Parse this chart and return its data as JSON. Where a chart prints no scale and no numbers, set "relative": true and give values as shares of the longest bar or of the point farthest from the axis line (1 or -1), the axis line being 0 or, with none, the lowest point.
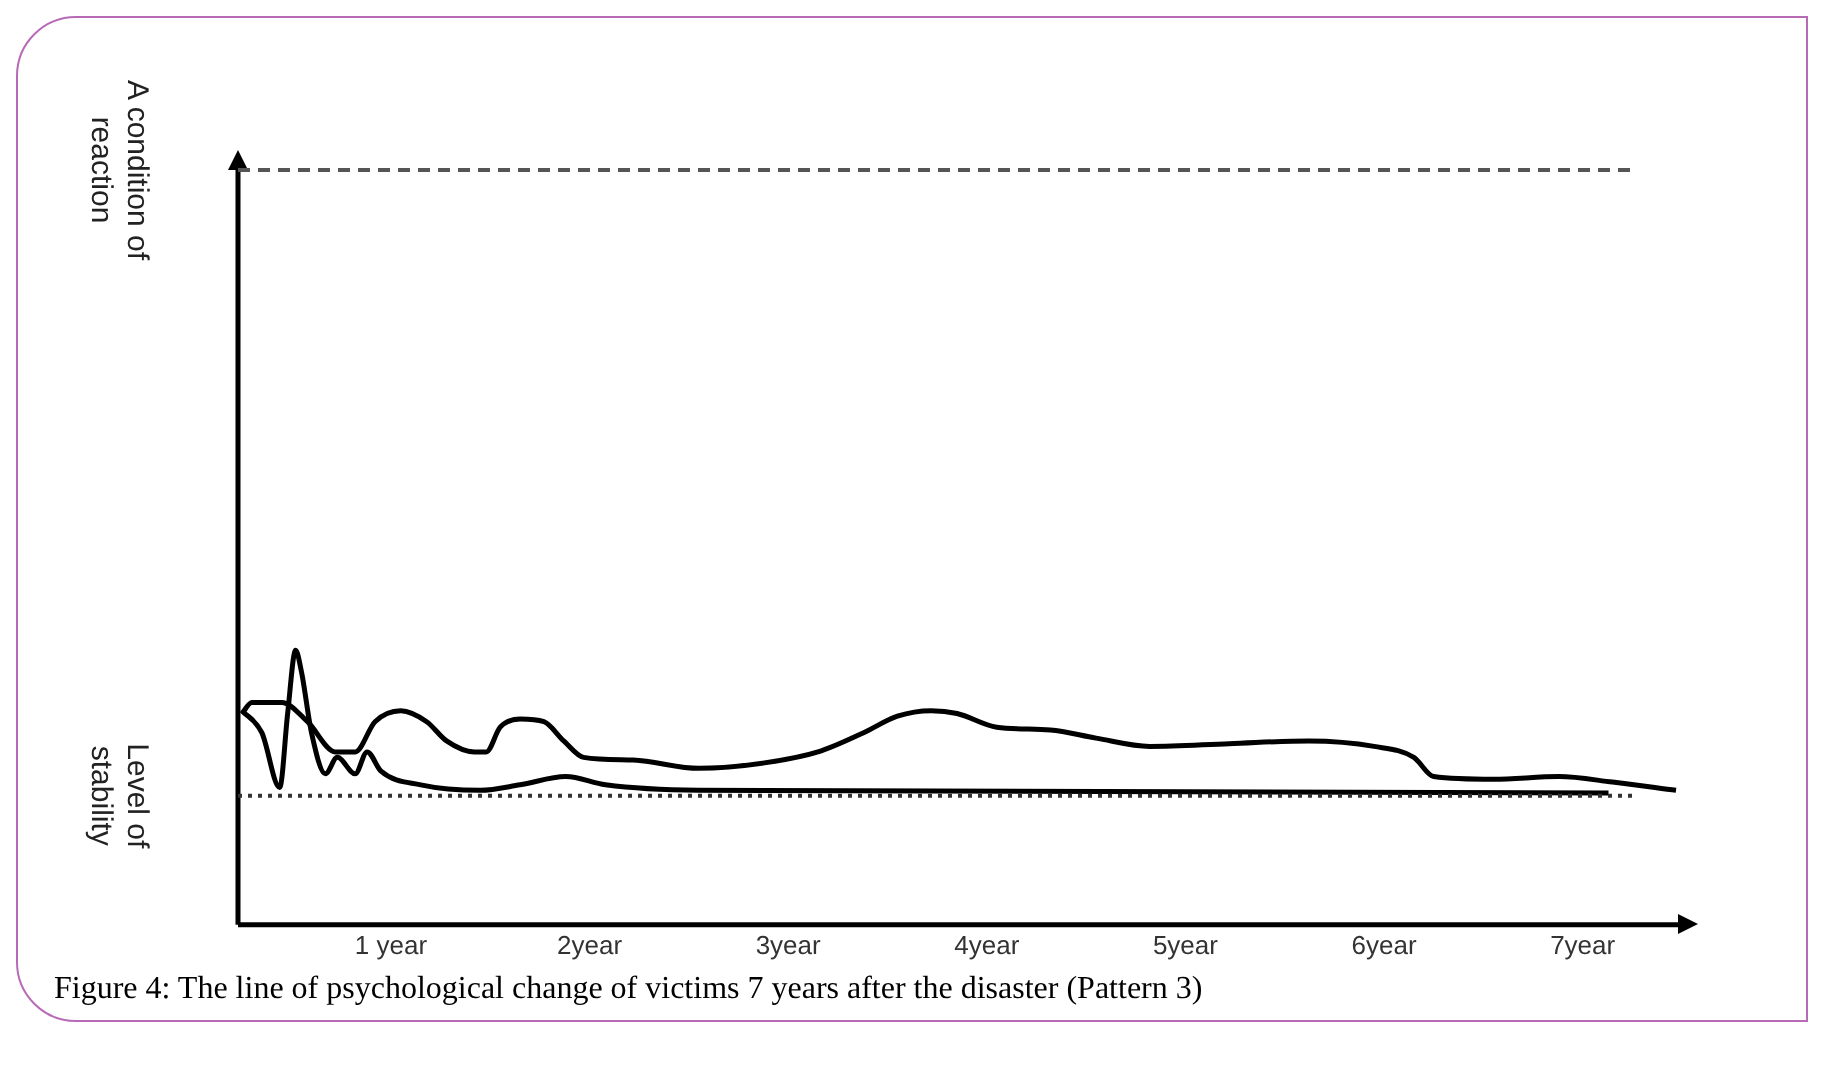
{
  "chart_data": {
    "type": "line",
    "relative": true,
    "annotations": [
      "Figure 4: The line of psychological change of victims 7 years after the disaster (Pattern 3)"
    ],
    "xlim": [
      0.23,
      7.5
    ],
    "xticks": [
      {
        "value": 1,
        "label": "1 year"
      },
      {
        "value": 2,
        "label": "2year"
      },
      {
        "value": 3,
        "label": "3year"
      },
      {
        "value": 4,
        "label": "4year"
      },
      {
        "value": 5,
        "label": "5year"
      },
      {
        "value": 6,
        "label": "6year"
      },
      {
        "value": 7,
        "label": "7year"
      }
    ],
    "series": [
      {
        "color": "#000000",
        "x": [
          0.25,
          0.3,
          0.45,
          0.58,
          0.72,
          0.82,
          0.92,
          1.05,
          1.18,
          1.28,
          1.42,
          1.48,
          1.55,
          1.65,
          1.77,
          1.87,
          1.97,
          2.22,
          2.55,
          2.88,
          3.15,
          3.38,
          3.55,
          3.72,
          3.85,
          4.05,
          4.32,
          4.55,
          4.82,
          5.22,
          5.62,
          5.95,
          6.15,
          6.25,
          6.55,
          6.88,
          7.15,
          7.47
        ],
        "values": [
          0.77,
          0.81,
          0.81,
          0.74,
          0.63,
          0.63,
          0.74,
          0.78,
          0.74,
          0.67,
          0.63,
          0.63,
          0.72,
          0.75,
          0.74,
          0.67,
          0.61,
          0.6,
          0.57,
          0.59,
          0.63,
          0.7,
          0.76,
          0.78,
          0.77,
          0.72,
          0.71,
          0.68,
          0.65,
          0.66,
          0.67,
          0.65,
          0.61,
          0.54,
          0.53,
          0.54,
          0.52,
          0.49
        ]
      },
      {
        "color": "#000000",
        "x": [
          0.25,
          0.35,
          0.44,
          0.48,
          0.52,
          0.55,
          0.6,
          0.67,
          0.73,
          0.82,
          0.88,
          0.95,
          1.15,
          1.45,
          1.65,
          1.88,
          2.08,
          2.55,
          7.13
        ],
        "values": [
          0.78,
          0.7,
          0.5,
          0.77,
          1,
          0.92,
          0.7,
          0.55,
          0.61,
          0.55,
          0.63,
          0.56,
          0.51,
          0.49,
          0.51,
          0.54,
          0.51,
          0.49,
          0.48
        ]
      }
    ],
    "ref_lines": [
      {
        "axis": "y",
        "value": 2.75,
        "label": "A condition of reaction",
        "line_style": "dashed",
        "color": "#555555"
      },
      {
        "axis": "y",
        "value": 0.47,
        "label": "Level of stability",
        "line_style": "dotted",
        "color": "#333333"
      }
    ]
  }
}
